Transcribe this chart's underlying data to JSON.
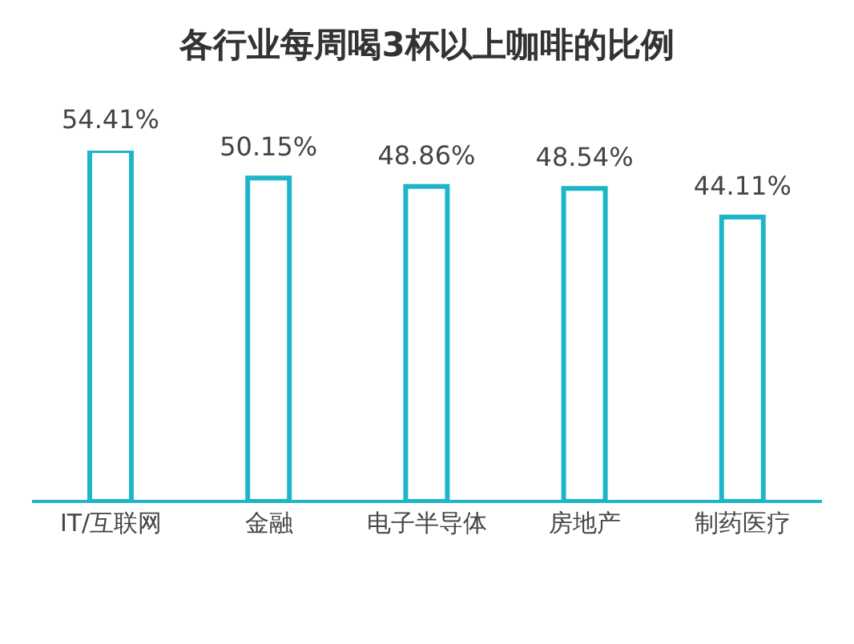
{
  "chart_data": {
    "type": "bar",
    "title": "各行业每周喝3杯以上咖啡的比例",
    "categories": [
      "IT/互联网",
      "金融",
      "电子半导体",
      "房地产",
      "制药医疗"
    ],
    "values": [
      54.41,
      50.15,
      48.86,
      48.54,
      44.11
    ],
    "value_labels": [
      "54.41%",
      "50.15%",
      "48.86%",
      "48.54%",
      "44.11%"
    ],
    "color": "#1fb5c9",
    "grid": false,
    "legend": false,
    "tick_labels": "x"
  }
}
